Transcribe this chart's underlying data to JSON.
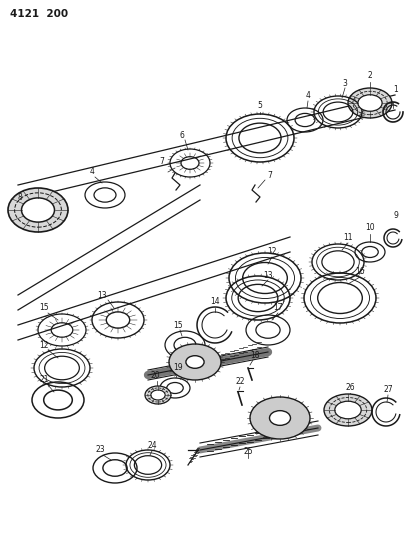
{
  "title": "4121  200",
  "bg": "#ffffff",
  "lc": "#1a1a1a",
  "fig_w": 4.08,
  "fig_h": 5.33,
  "dpi": 100,
  "shaft_upper": {
    "line1": [
      [
        30,
        390
      ],
      [
        395,
        175
      ]
    ],
    "line2": [
      [
        30,
        365
      ],
      [
        395,
        150
      ]
    ]
  },
  "shaft_lower": {
    "line1": [
      [
        30,
        280
      ],
      [
        290,
        175
      ]
    ],
    "line2": [
      [
        30,
        255
      ],
      [
        290,
        150
      ]
    ]
  }
}
